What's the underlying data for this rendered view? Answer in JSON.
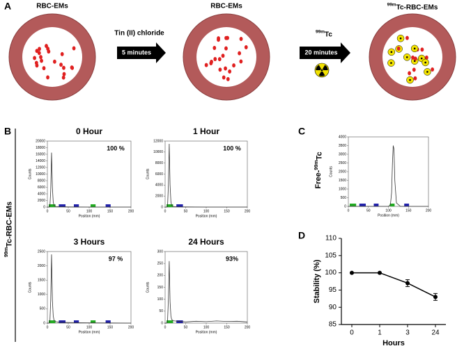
{
  "panel_labels": [
    "A",
    "B",
    "C",
    "D"
  ],
  "diagram": {
    "labels": [
      "RBC-EMs",
      "RBC-EMs",
      {
        "sup": "99m",
        "text": "Tc-RBC-EMs"
      }
    ],
    "steps": [
      {
        "reagent": "Tin (II) chloride",
        "time": "5 minutes"
      },
      {
        "reagent": {
          "sup": "99m",
          "text": "Tc"
        },
        "time": "20 minutes"
      }
    ]
  },
  "group_label": {
    "sup": "99m",
    "text": "Tc-RBC-EMs"
  },
  "chart_data": [
    {
      "type": "line",
      "title": "0 Hour",
      "annotation": "100 %",
      "xlabel": "Position (mm)",
      "ylabel": "Counts",
      "color": "#333333",
      "x": [
        0,
        4,
        6,
        8,
        10,
        12,
        14,
        16,
        20,
        30,
        50,
        100,
        150,
        200
      ],
      "values": [
        0,
        0,
        200,
        5000,
        16500,
        6000,
        1500,
        500,
        200,
        100,
        50,
        0,
        0,
        0
      ],
      "xlim": [
        0,
        200
      ],
      "xticks": [
        0,
        50,
        100,
        150,
        200
      ],
      "ylim": [
        0,
        20000
      ],
      "yticks": [
        0,
        2000,
        4000,
        6000,
        8000,
        10000,
        12000,
        14000,
        16000,
        18000,
        20000
      ]
    },
    {
      "type": "line",
      "title": "1 Hour",
      "annotation": "100 %",
      "xlabel": "Position (mm)",
      "ylabel": "Counts",
      "color": "#333333",
      "x": [
        0,
        4,
        6,
        8,
        10,
        12,
        14,
        16,
        20,
        30,
        50,
        100,
        150,
        200
      ],
      "values": [
        0,
        0,
        150,
        4000,
        11500,
        4000,
        1000,
        300,
        100,
        50,
        20,
        0,
        0,
        0
      ],
      "xlim": [
        0,
        200
      ],
      "xticks": [
        0,
        50,
        100,
        150,
        200
      ],
      "ylim": [
        0,
        12000
      ],
      "yticks": [
        0,
        2000,
        4000,
        6000,
        8000,
        10000,
        12000
      ]
    },
    {
      "type": "line",
      "title": "3 Hours",
      "annotation": "97 %",
      "xlabel": "Position (mm)",
      "ylabel": "Counts",
      "color": "#333333",
      "x": [
        0,
        4,
        6,
        8,
        10,
        12,
        14,
        16,
        20,
        30,
        50,
        100,
        150,
        200
      ],
      "values": [
        0,
        0,
        50,
        800,
        2400,
        800,
        250,
        100,
        50,
        30,
        20,
        10,
        5,
        0
      ],
      "xlim": [
        0,
        200
      ],
      "xticks": [
        0,
        50,
        100,
        150,
        200
      ],
      "ylim": [
        0,
        2500
      ],
      "yticks": [
        0,
        500,
        1000,
        1500,
        2000,
        2500
      ]
    },
    {
      "type": "line",
      "title": "24 Hours",
      "annotation": "93%",
      "xlabel": "Position (mm)",
      "ylabel": "Counts",
      "color": "#333333",
      "x": [
        0,
        4,
        6,
        8,
        10,
        12,
        14,
        16,
        20,
        30,
        50,
        75,
        100,
        125,
        150,
        175,
        200
      ],
      "values": [
        0,
        0,
        10,
        100,
        260,
        90,
        30,
        15,
        10,
        8,
        5,
        8,
        6,
        9,
        7,
        8,
        5
      ],
      "xlim": [
        0,
        200
      ],
      "xticks": [
        0,
        50,
        100,
        150,
        200
      ],
      "ylim": [
        0,
        300
      ],
      "yticks": [
        0,
        50,
        100,
        150,
        200,
        250,
        300
      ]
    },
    {
      "type": "line",
      "title": {
        "prefix": "Free-",
        "sup": "99m",
        "text": "Tc"
      },
      "xlabel": "Position (mm)",
      "ylabel": "Counts",
      "color": "#333333",
      "x": [
        0,
        50,
        100,
        105,
        108,
        110,
        112,
        114,
        116,
        120,
        130,
        150,
        200
      ],
      "values": [
        0,
        0,
        0,
        100,
        800,
        2500,
        3500,
        3300,
        1500,
        200,
        0,
        0,
        0
      ],
      "xlim": [
        0,
        200
      ],
      "xticks": [
        0,
        50,
        100,
        150,
        200
      ],
      "ylim": [
        0,
        4000
      ],
      "yticks": [
        0,
        500,
        1000,
        1500,
        2000,
        2500,
        3000,
        3500,
        4000
      ]
    },
    {
      "type": "line",
      "xlabel": "Hours",
      "ylabel": "Stability (%)",
      "color": "#000000",
      "categories": [
        "0",
        "1",
        "3",
        "24"
      ],
      "values": [
        100,
        100,
        97,
        93
      ],
      "errors": [
        0,
        0,
        1,
        1
      ],
      "ylim": [
        85,
        110
      ],
      "yticks": [
        85,
        90,
        95,
        100,
        105,
        110
      ]
    }
  ]
}
